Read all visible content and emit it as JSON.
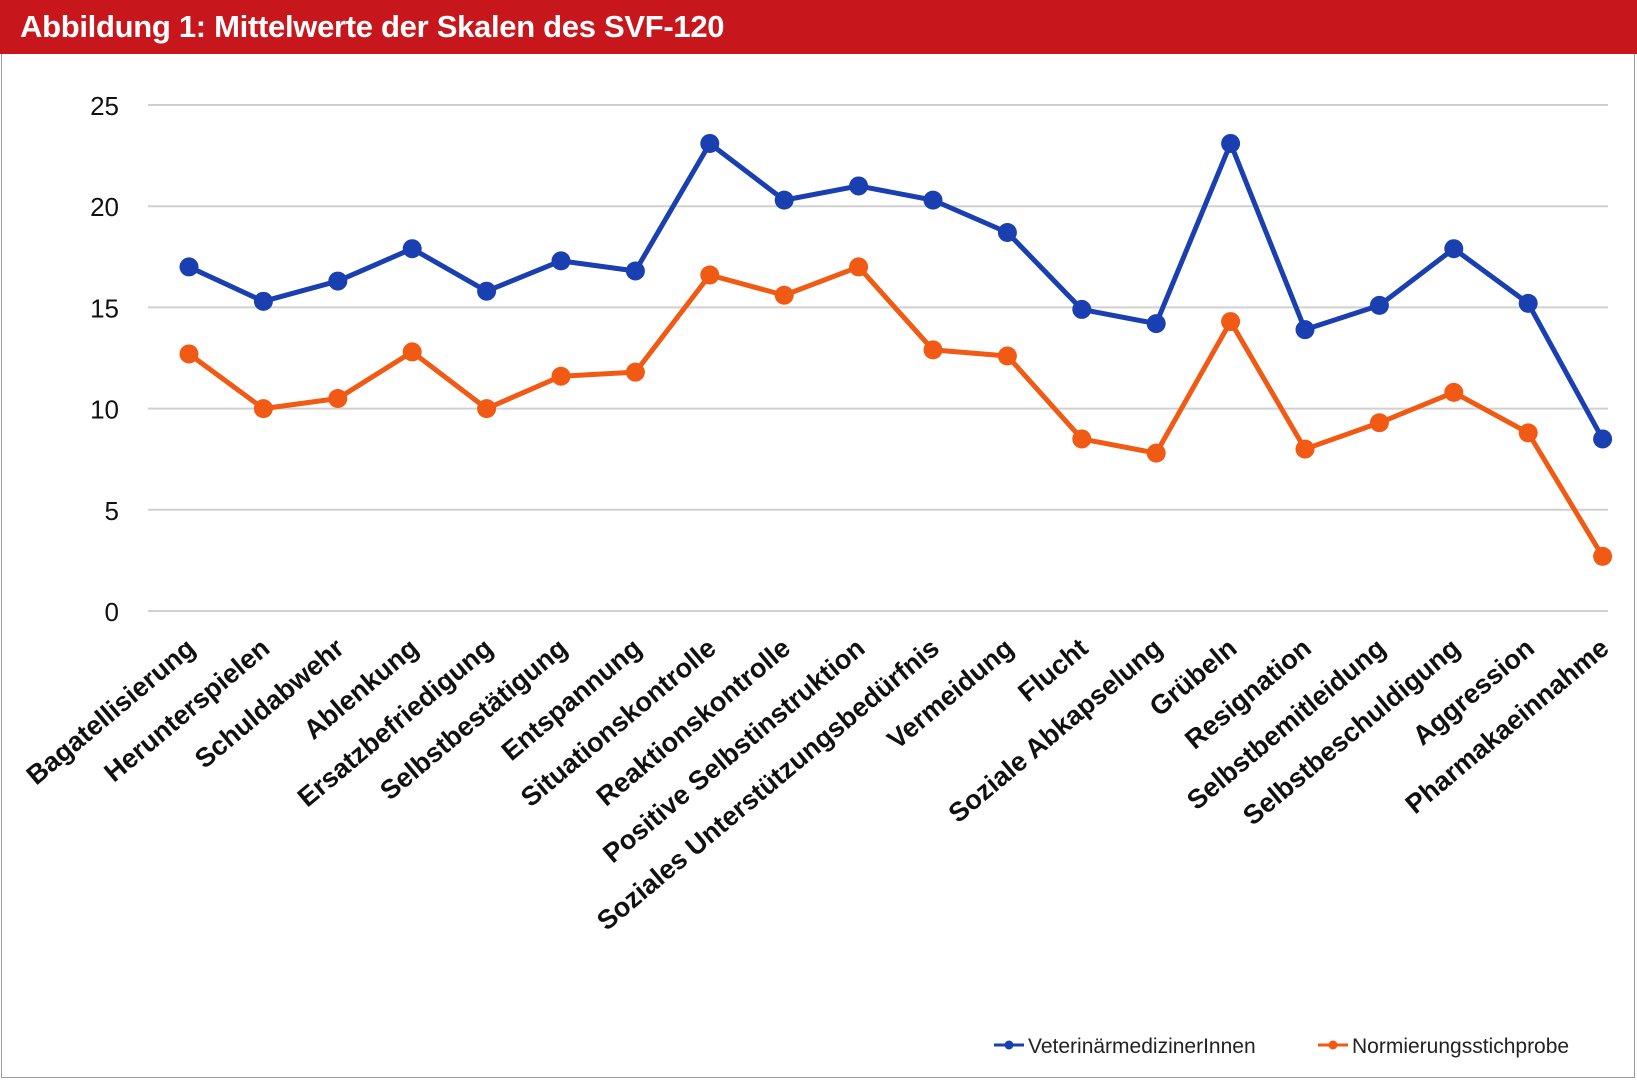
{
  "header": {
    "title": "Abbildung 1: Mittelwerte der Skalen des SVF-120"
  },
  "chart_data": {
    "type": "line",
    "title": "Abbildung 1: Mittelwerte der Skalen des SVF-120",
    "xlabel": "",
    "ylabel": "",
    "ylim": [
      0,
      25
    ],
    "yticks": [
      0,
      5,
      10,
      15,
      20,
      25
    ],
    "grid": true,
    "legend_position": "bottom-right",
    "categories": [
      "Bagatellisierung",
      "Herunterspielen",
      "Schuldabwehr",
      "Ablenkung",
      "Ersatzbefriedigung",
      "Selbstbestätigung",
      "Entspannung",
      "Situationskontrolle",
      "Reaktionskontrolle",
      "Positive Selbstinstruktion",
      "Soziales Unterstützungsbedürfnis",
      "Vermeidung",
      "Flucht",
      "Soziale Abkapselung",
      "Grübeln",
      "Resignation",
      "Selbstbemitleidung",
      "Selbstbeschuldigung",
      "Aggression",
      "Pharmakaeinnahme"
    ],
    "series": [
      {
        "name": "VeterinärmedizinerInnen",
        "color": "#1a3fb0",
        "values": [
          17.0,
          15.3,
          16.3,
          17.9,
          15.8,
          17.3,
          16.8,
          23.1,
          20.3,
          21.0,
          20.3,
          18.7,
          14.9,
          14.2,
          23.1,
          13.9,
          15.1,
          17.9,
          15.2,
          8.5
        ]
      },
      {
        "name": "Normierungsstichprobe",
        "color": "#f05a14",
        "values": [
          12.7,
          10.0,
          10.5,
          12.8,
          10.0,
          11.6,
          11.8,
          16.6,
          15.6,
          17.0,
          12.9,
          12.6,
          8.5,
          7.8,
          14.3,
          8.0,
          9.3,
          10.8,
          8.8,
          2.7
        ]
      }
    ]
  }
}
